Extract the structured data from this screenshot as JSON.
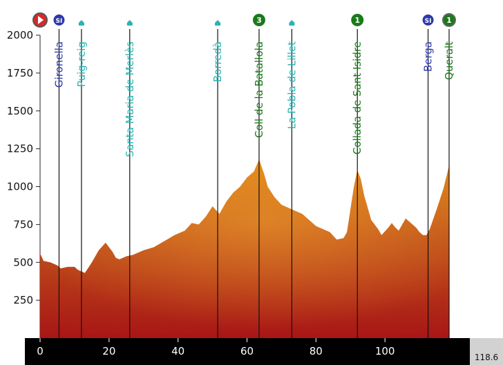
{
  "colors": {
    "profile_top": "#e08a1a",
    "profile_mid": "#b83a1a",
    "profile_low": "#a81616",
    "axis_bar": "#000000",
    "sprint": "#2d3aa8",
    "town": "#2bb3b3",
    "climb": "#1a7a1a",
    "start": "#d42b2b"
  },
  "total_distance": "118.6",
  "chart_data": {
    "type": "area",
    "title": "",
    "xlabel": "",
    "ylabel": "",
    "xlim": [
      0,
      118.6
    ],
    "ylim": [
      0,
      2000
    ],
    "xticks": [
      0,
      20,
      40,
      60,
      80,
      100
    ],
    "yticks": [
      250,
      500,
      750,
      1000,
      1250,
      1500,
      1750,
      2000
    ],
    "grid": false,
    "profile": [
      [
        0,
        560
      ],
      [
        1,
        510
      ],
      [
        3,
        500
      ],
      [
        5,
        480
      ],
      [
        6,
        460
      ],
      [
        8,
        470
      ],
      [
        10,
        470
      ],
      [
        11,
        450
      ],
      [
        12,
        440
      ],
      [
        13,
        430
      ],
      [
        15,
        500
      ],
      [
        17,
        580
      ],
      [
        19,
        630
      ],
      [
        20,
        600
      ],
      [
        21,
        570
      ],
      [
        22,
        530
      ],
      [
        23,
        520
      ],
      [
        25,
        540
      ],
      [
        27,
        550
      ],
      [
        30,
        580
      ],
      [
        33,
        600
      ],
      [
        36,
        640
      ],
      [
        39,
        680
      ],
      [
        42,
        710
      ],
      [
        44,
        760
      ],
      [
        46,
        750
      ],
      [
        48,
        800
      ],
      [
        50,
        870
      ],
      [
        52,
        820
      ],
      [
        54,
        900
      ],
      [
        56,
        960
      ],
      [
        58,
        1000
      ],
      [
        60,
        1060
      ],
      [
        62,
        1100
      ],
      [
        63.5,
        1180
      ],
      [
        65,
        1080
      ],
      [
        66,
        1000
      ],
      [
        68,
        930
      ],
      [
        70,
        880
      ],
      [
        72,
        860
      ],
      [
        74,
        840
      ],
      [
        76,
        820
      ],
      [
        78,
        780
      ],
      [
        80,
        740
      ],
      [
        82,
        720
      ],
      [
        84,
        700
      ],
      [
        86,
        650
      ],
      [
        88,
        660
      ],
      [
        89,
        700
      ],
      [
        90,
        850
      ],
      [
        91,
        1000
      ],
      [
        92,
        1110
      ],
      [
        93,
        1050
      ],
      [
        94,
        940
      ],
      [
        96,
        780
      ],
      [
        98,
        720
      ],
      [
        99,
        680
      ],
      [
        101,
        730
      ],
      [
        102,
        760
      ],
      [
        103,
        730
      ],
      [
        104,
        710
      ],
      [
        106,
        790
      ],
      [
        107,
        770
      ],
      [
        109,
        730
      ],
      [
        110,
        700
      ],
      [
        111,
        680
      ],
      [
        112,
        680
      ],
      [
        113,
        720
      ],
      [
        115,
        850
      ],
      [
        117,
        990
      ],
      [
        118.6,
        1140
      ]
    ],
    "waypoints": [
      {
        "name": "Gironella",
        "km": 5.5,
        "alt": 470,
        "type": "sprint",
        "badge": "SI"
      },
      {
        "name": "Puig-reig",
        "km": 12,
        "alt": 440,
        "type": "town",
        "badge": ""
      },
      {
        "name": "Santa Maria de Merlès",
        "km": 26,
        "alt": 540,
        "type": "town",
        "badge": ""
      },
      {
        "name": "Borredà",
        "km": 51.5,
        "alt": 850,
        "type": "town",
        "badge": ""
      },
      {
        "name": "Coll de la Batallola",
        "km": 63.5,
        "alt": 1180,
        "type": "climb",
        "badge": "3"
      },
      {
        "name": "La Pobla de Lillet",
        "km": 73,
        "alt": 840,
        "type": "town",
        "badge": ""
      },
      {
        "name": "Collada de Sant Isidre",
        "km": 92,
        "alt": 1110,
        "type": "climb",
        "badge": "1"
      },
      {
        "name": "Berga",
        "km": 112.5,
        "alt": 680,
        "type": "sprint",
        "badge": "SI"
      },
      {
        "name": "Queralt",
        "km": 118.6,
        "alt": 1140,
        "type": "climb",
        "badge": "1"
      }
    ]
  }
}
